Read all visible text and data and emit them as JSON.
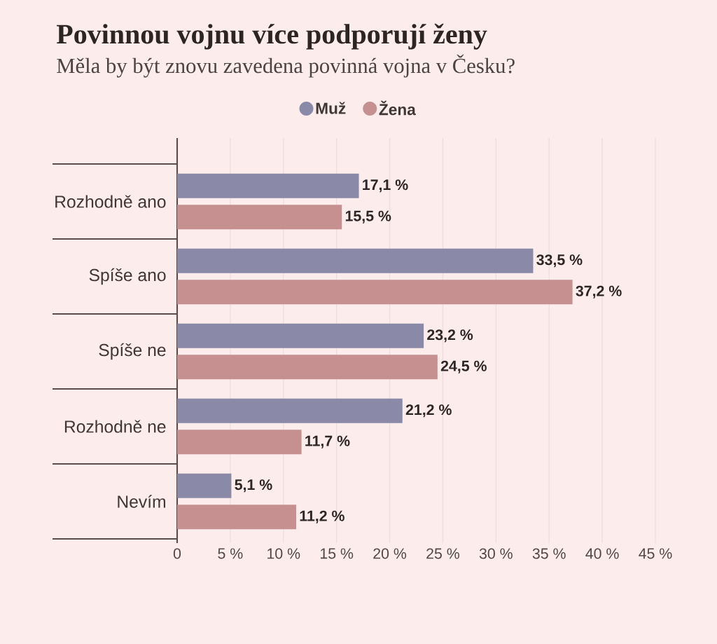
{
  "chart_data": {
    "type": "bar",
    "orientation": "horizontal",
    "title": "Povinnou vojnu více podporují ženy",
    "subtitle": "Měla by být znovu zavedena povinná vojna v Česku?",
    "categories": [
      "Rozhodně ano",
      "Spíše ano",
      "Spíše ne",
      "Rozhodně ne",
      "Nevím"
    ],
    "series": [
      {
        "name": "Muž",
        "color": "#8a8aa8",
        "values": [
          17.1,
          33.5,
          23.2,
          21.2,
          5.1
        ],
        "value_labels": [
          "17,1 %",
          "33,5 %",
          "23,2 %",
          "21,2 %",
          "5,1 %"
        ]
      },
      {
        "name": "Žena",
        "color": "#c69090",
        "values": [
          15.5,
          37.2,
          24.5,
          11.7,
          11.2
        ],
        "value_labels": [
          "15,5 %",
          "37,2 %",
          "24,5 %",
          "11,7 %",
          "11,2 %"
        ]
      }
    ],
    "xlim": [
      0,
      45
    ],
    "xticks": [
      0,
      {
        "value": 5,
        "label": "5 %"
      },
      {
        "value": 10,
        "label": "10 %"
      },
      {
        "value": 15,
        "label": "15 %"
      },
      {
        "value": 20,
        "label": "20 %"
      },
      {
        "value": 25,
        "label": "25 %"
      },
      {
        "value": 30,
        "label": "30 %"
      },
      {
        "value": 35,
        "label": "35 %"
      },
      {
        "value": 40,
        "label": "40 %"
      },
      {
        "value": 45,
        "label": "45 %"
      }
    ],
    "grid": "x",
    "legend": "top"
  }
}
